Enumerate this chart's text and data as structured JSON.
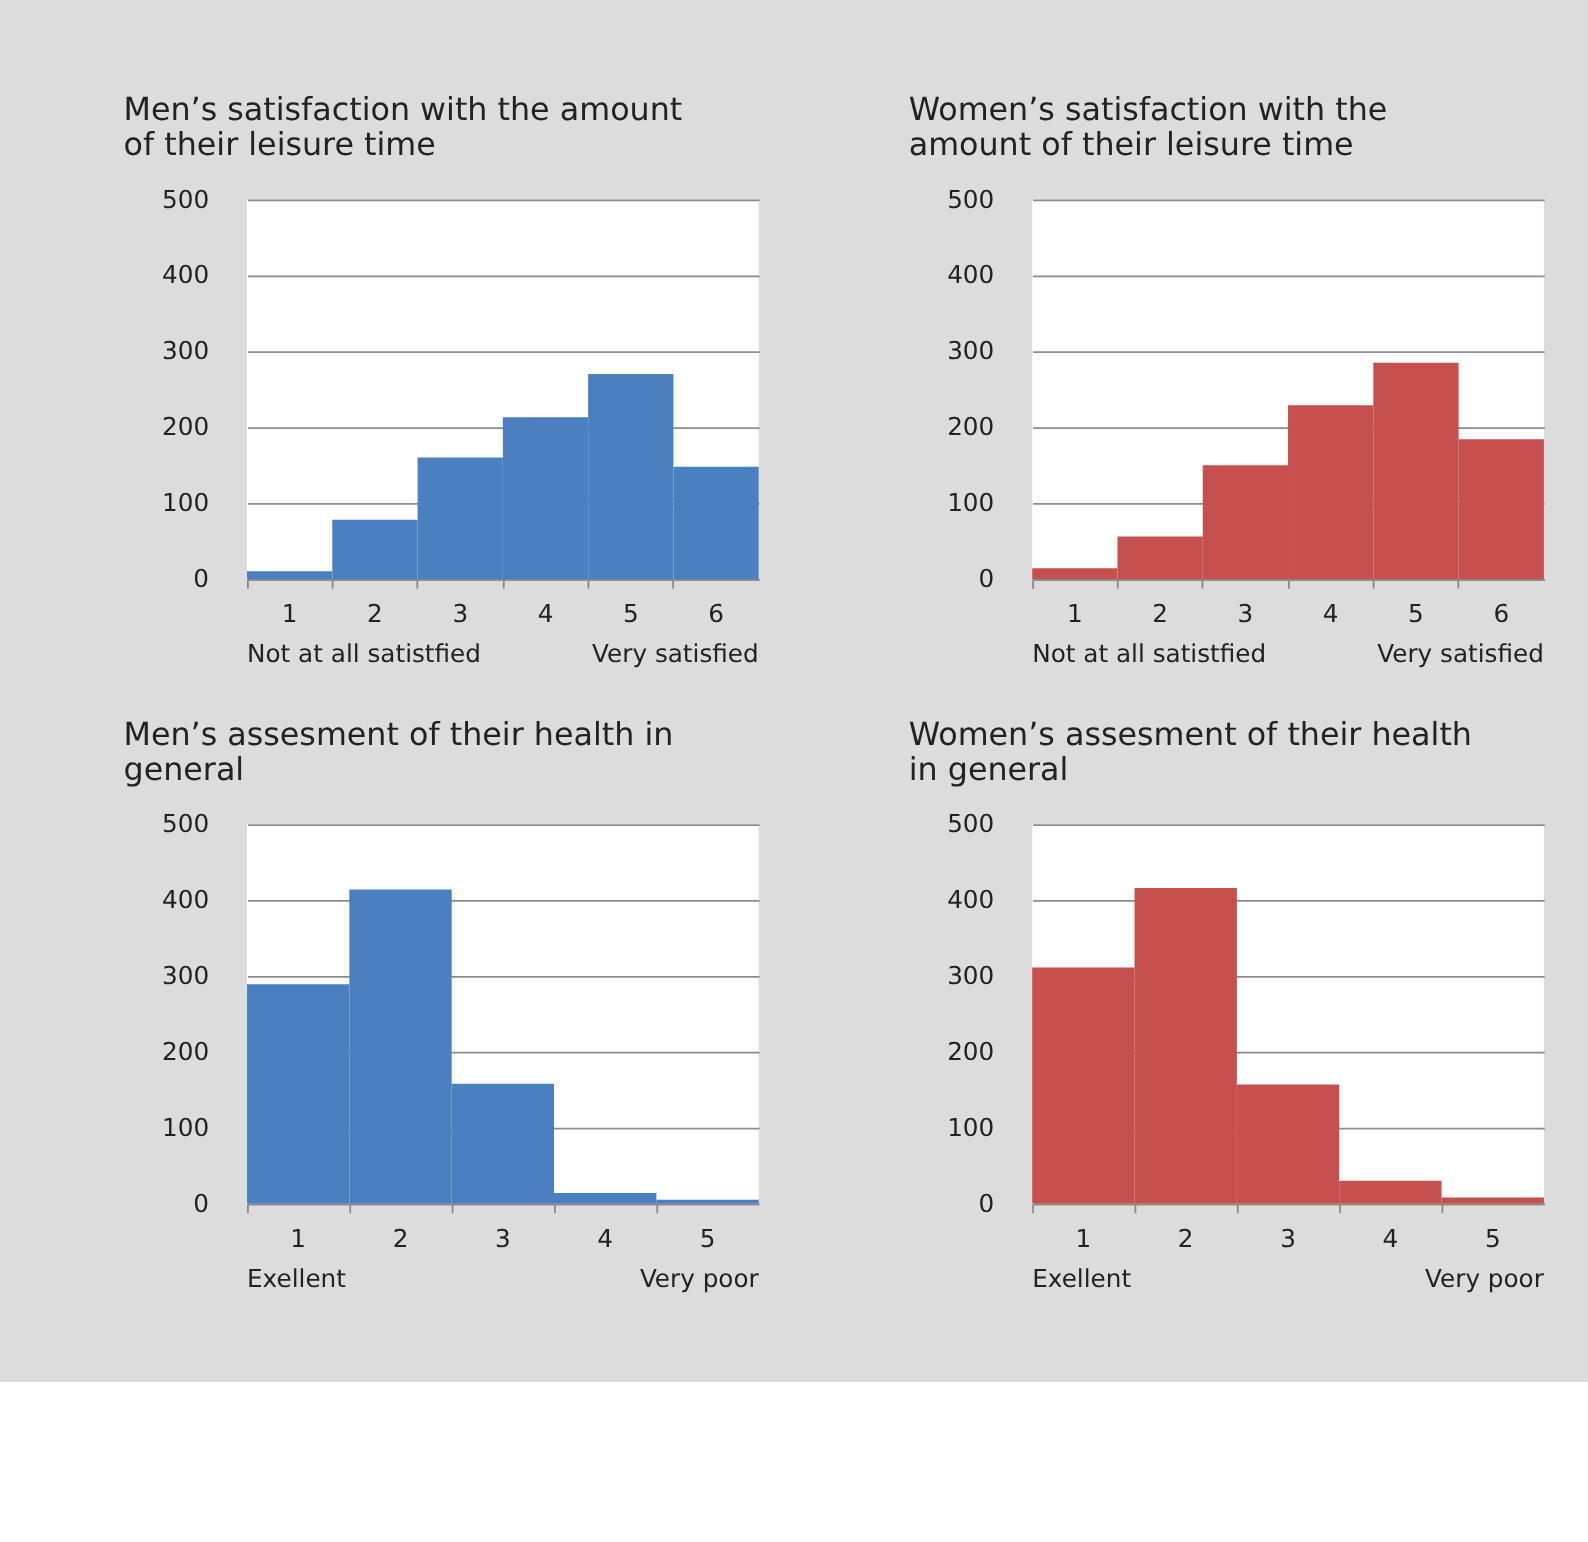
{
  "chart_data": [
    {
      "type": "bar",
      "title": "Men’s satisfaction with the amount of their leisure time",
      "categories": [
        "1",
        "2",
        "3",
        "4",
        "5",
        "6"
      ],
      "values": [
        10,
        78,
        160,
        213,
        270,
        148
      ],
      "color": "#4a80bf",
      "ylim": [
        0,
        500
      ],
      "yticks": [
        0,
        100,
        200,
        300,
        400,
        500
      ],
      "grid": "y",
      "annotations": [
        "Not at all satistfied",
        "Very satisfied"
      ]
    },
    {
      "type": "bar",
      "title": "Women’s satisfaction with the amount of their leisure time",
      "categories": [
        "1",
        "2",
        "3",
        "4",
        "5",
        "6"
      ],
      "values": [
        14,
        56,
        150,
        229,
        285,
        184
      ],
      "color": "#c5504e",
      "ylim": [
        0,
        500
      ],
      "yticks": [
        0,
        100,
        200,
        300,
        400,
        500
      ],
      "grid": "y",
      "annotations": [
        "Not at all satistfied",
        "Very satisfied"
      ]
    },
    {
      "type": "bar",
      "title": "Men’s assesment of their health in general",
      "categories": [
        "1",
        "2",
        "3",
        "4",
        "5"
      ],
      "values": [
        289,
        414,
        158,
        14,
        5
      ],
      "color": "#4a80bf",
      "ylim": [
        0,
        500
      ],
      "yticks": [
        0,
        100,
        200,
        300,
        400,
        500
      ],
      "grid": "y",
      "annotations": [
        "Exellent",
        "Very poor"
      ]
    },
    {
      "type": "bar",
      "title": "Women’s assesment of their health in general",
      "categories": [
        "1",
        "2",
        "3",
        "4",
        "5"
      ],
      "values": [
        311,
        416,
        157,
        30,
        8
      ],
      "color": "#c5504e",
      "ylim": [
        0,
        500
      ],
      "yticks": [
        0,
        100,
        200,
        300,
        400,
        500
      ],
      "grid": "y",
      "annotations": [
        "Exellent",
        "Very poor"
      ]
    }
  ]
}
